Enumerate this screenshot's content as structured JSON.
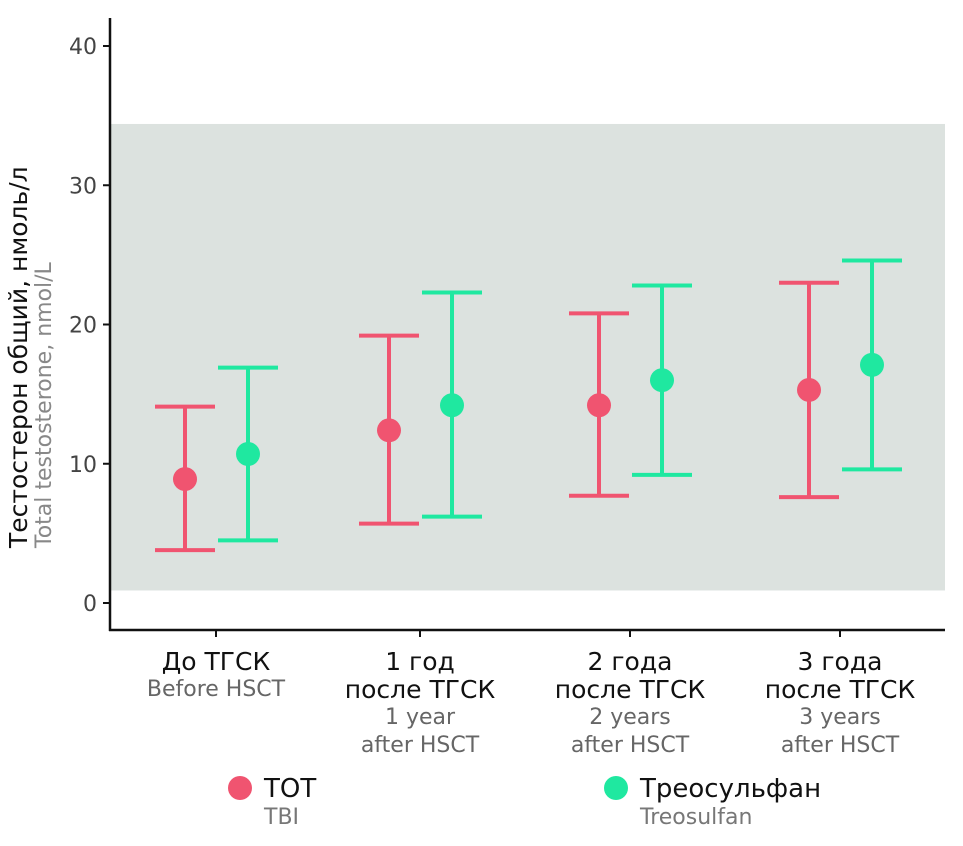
{
  "chart_data": {
    "type": "errorbar",
    "ylabel": "Тестостерон общий, нмоль/л",
    "ylabel_en": "Total testosterone, nmol/L",
    "ylim": [
      -1.9,
      42
    ],
    "yticks": [
      "0",
      "10",
      "20",
      "30",
      "40"
    ],
    "reference_range": [
      0.9,
      34.4
    ],
    "categories": [
      {
        "ru": [
          "До ТГСК"
        ],
        "en": [
          "Before HSCT"
        ]
      },
      {
        "ru": [
          "1 год",
          "после ТГСК"
        ],
        "en": [
          "1 year",
          "after HSCT"
        ]
      },
      {
        "ru": [
          "2 года",
          "после ТГСК"
        ],
        "en": [
          "2 years",
          "after HSCT"
        ]
      },
      {
        "ru": [
          "3 года",
          "после ТГСК"
        ],
        "en": [
          "3 years",
          "after HSCT"
        ]
      }
    ],
    "series": [
      {
        "name": "ТОТ",
        "name_en": "TBI",
        "color": "#f05470",
        "mean": [
          8.9,
          12.4,
          14.2,
          15.3
        ],
        "lower": [
          3.8,
          5.7,
          7.7,
          7.6
        ],
        "upper": [
          14.1,
          19.2,
          20.8,
          23.0
        ]
      },
      {
        "name": "Треосульфан",
        "name_en": "Treosulfan",
        "color": "#1fe8a0",
        "mean": [
          10.7,
          14.2,
          16.0,
          17.1
        ],
        "lower": [
          4.5,
          6.2,
          9.2,
          9.6
        ],
        "upper": [
          16.9,
          22.3,
          22.8,
          24.6
        ]
      }
    ],
    "legend": "bottom"
  }
}
